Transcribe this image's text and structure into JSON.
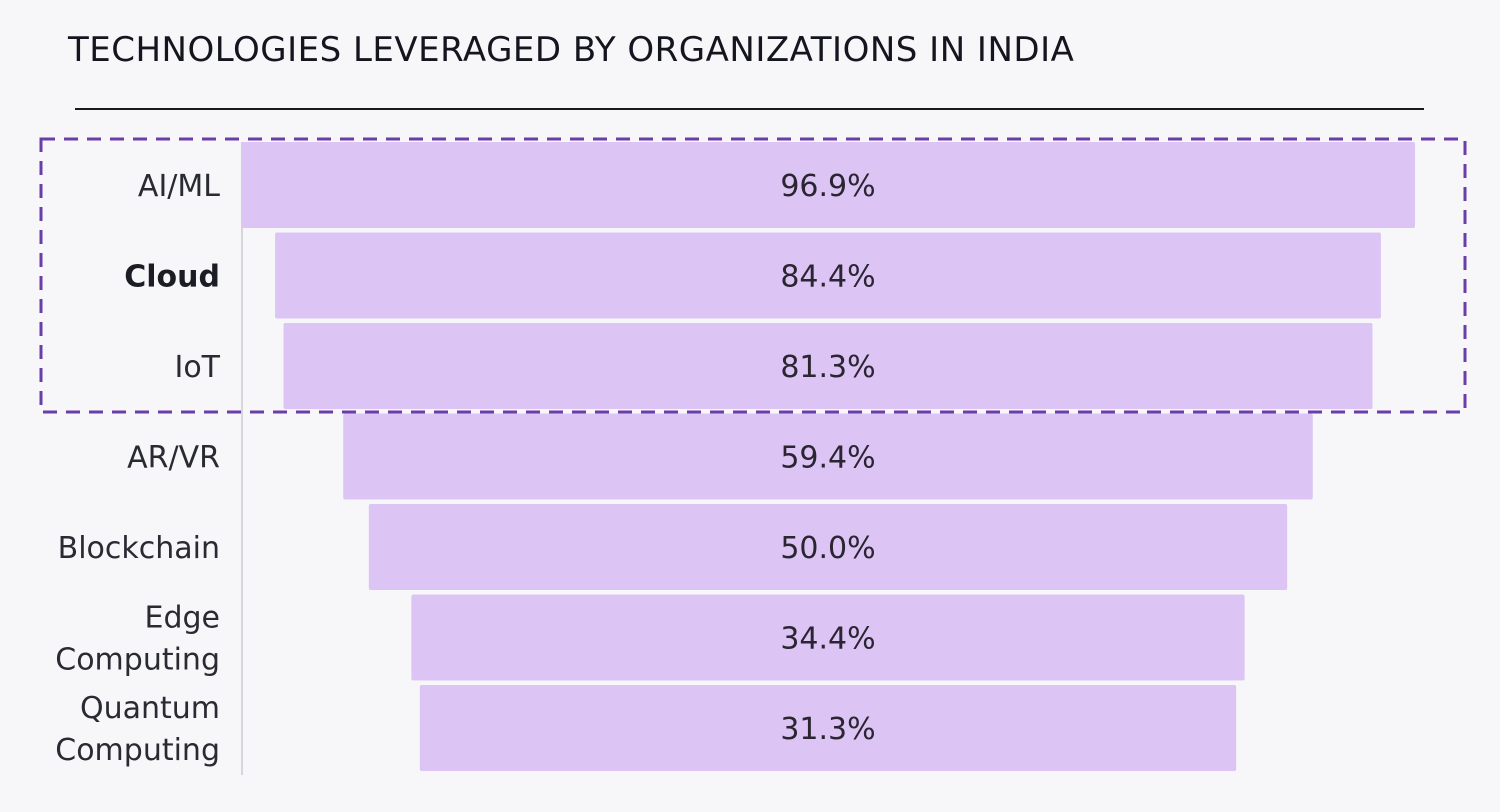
{
  "chart_data": {
    "type": "bar",
    "orientation": "horizontal-funnel",
    "title": "TECHNOLOGIES LEVERAGED BY ORGANIZATIONS IN INDIA",
    "categories": [
      [
        "AI/ML"
      ],
      [
        "Cloud"
      ],
      [
        "IoT"
      ],
      [
        "AR/VR"
      ],
      [
        "Blockchain"
      ],
      [
        "Edge",
        "Computing"
      ],
      [
        "Quantum",
        "Computing"
      ]
    ],
    "values": [
      96.9,
      84.4,
      81.3,
      59.4,
      50.0,
      34.4,
      31.3
    ],
    "value_labels": [
      "96.9%",
      "84.4%",
      "81.3%",
      "59.4%",
      "50.0%",
      "34.4%",
      "31.3%"
    ],
    "bold_categories": [
      "Cloud"
    ],
    "highlight": {
      "categories": [
        "AI/ML",
        "Cloud",
        "IoT"
      ],
      "style": "dashed-box"
    },
    "colors": {
      "bar": "#dcc4f5",
      "highlight_border": "#6a3ea8",
      "divider": "#1a1a1a",
      "axis": "#d6d6dc"
    }
  }
}
